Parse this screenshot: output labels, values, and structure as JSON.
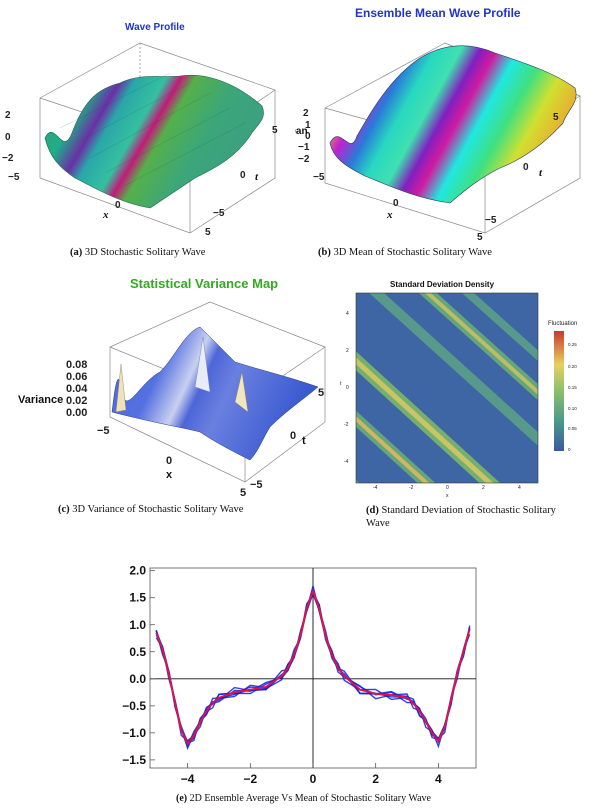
{
  "panels": {
    "a": {
      "title": "Wave Profile",
      "title_color": "#2233cc",
      "z_ticks": [
        "2",
        "0",
        "−2"
      ],
      "x_label": "x",
      "x_ticks": [
        "−5",
        "0",
        "5"
      ],
      "t_label": "t",
      "t_ticks": [
        "5",
        "0",
        "−5"
      ],
      "caption_label": "(a)",
      "caption_text": " 3D Stochastic Solitary Wave"
    },
    "b": {
      "title": "Ensemble Mean Wave Profile",
      "title_color": "#2233cc",
      "z_label": "Mean",
      "z_ticks": [
        "2",
        "1",
        "0",
        "−1",
        "−2"
      ],
      "x_label": "x",
      "x_ticks": [
        "−5",
        "0",
        "5"
      ],
      "t_label": "t",
      "t_ticks": [
        "5",
        "0",
        "−5"
      ],
      "caption_label": "(b)",
      "caption_text": " 3D Mean of Stochastic Solitary Wave"
    },
    "c": {
      "title": "Statistical Variance Map",
      "title_color": "#33aa22",
      "z_label": "Variance",
      "z_ticks": [
        "0.08",
        "0.06",
        "0.04",
        "0.02",
        "0.00"
      ],
      "x_label": "x",
      "x_ticks": [
        "−5",
        "0",
        "5"
      ],
      "t_label": "t",
      "t_ticks": [
        "5",
        "0",
        "−5"
      ],
      "caption_label": "(c)",
      "caption_text": " 3D Variance of Stochastic Solitary Wave"
    },
    "d": {
      "title": "Standard Deviation Density",
      "legend_title": "Fluctuation",
      "legend_ticks": [
        "0.25",
        "0.20",
        "0.15",
        "0.10",
        "0.05",
        "0"
      ],
      "x_label": "x",
      "y_label": "t",
      "x_ticks": [
        "-4",
        "-2",
        "0",
        "2",
        "4"
      ],
      "y_ticks": [
        "4",
        "2",
        "0",
        "-2",
        "-4"
      ],
      "caption_label": "(d)",
      "caption_text": " Standard Deviation of Stochastic Solitary Wave"
    },
    "e": {
      "caption_label": "(e)",
      "caption_text": " 2D Ensemble Average Vs Mean of Stochastic Solitary Wave"
    }
  },
  "chart_data": {
    "type": "line",
    "x_ticks": [
      "−4",
      "−2",
      "0",
      "2",
      "4"
    ],
    "y_ticks": [
      "2.0",
      "1.5",
      "1.0",
      "0.5",
      "0.0",
      "−0.5",
      "−1.0",
      "−1.5"
    ],
    "xlim": [
      -5.2,
      5.2
    ],
    "ylim": [
      -1.65,
      2.05
    ],
    "series": [
      {
        "color": "#1020e0",
        "role": "ensemble realizations",
        "x": [
          -5,
          -4.8,
          -4.6,
          -4.4,
          -4.2,
          -4.0,
          -3.8,
          -3.6,
          -3.4,
          -3.2,
          -3.0,
          -2.5,
          -2.0,
          -1.5,
          -1.0,
          -0.8,
          -0.6,
          -0.4,
          -0.2,
          0.0,
          0.2,
          0.4,
          0.6,
          0.8,
          1.0,
          1.5,
          2.0,
          2.5,
          3.0,
          3.2,
          3.4,
          3.6,
          3.8,
          4.0,
          4.2,
          4.4,
          4.6,
          4.8,
          5.0
        ],
        "y": [
          0.85,
          0.55,
          0.1,
          -0.45,
          -0.95,
          -1.2,
          -1.05,
          -0.8,
          -0.6,
          -0.45,
          -0.35,
          -0.25,
          -0.2,
          -0.15,
          0.05,
          0.2,
          0.45,
          0.8,
          1.3,
          1.62,
          1.3,
          0.8,
          0.45,
          0.2,
          0.05,
          -0.2,
          -0.28,
          -0.3,
          -0.35,
          -0.45,
          -0.6,
          -0.8,
          -1.0,
          -1.15,
          -0.9,
          -0.4,
          0.1,
          0.5,
          0.92
        ]
      },
      {
        "color": "#ee1133",
        "role": "ensemble mean",
        "x": [
          -5,
          -4.8,
          -4.6,
          -4.4,
          -4.2,
          -4.0,
          -3.8,
          -3.6,
          -3.4,
          -3.2,
          -3.0,
          -2.5,
          -2.0,
          -1.5,
          -1.0,
          -0.8,
          -0.6,
          -0.4,
          -0.2,
          0.0,
          0.2,
          0.4,
          0.6,
          0.8,
          1.0,
          1.5,
          2.0,
          2.5,
          3.0,
          3.2,
          3.4,
          3.6,
          3.8,
          4.0,
          4.2,
          4.4,
          4.6,
          4.8,
          5.0
        ],
        "y": [
          0.85,
          0.55,
          0.1,
          -0.45,
          -0.95,
          -1.2,
          -1.05,
          -0.8,
          -0.6,
          -0.45,
          -0.35,
          -0.25,
          -0.2,
          -0.15,
          0.05,
          0.2,
          0.45,
          0.8,
          1.3,
          1.62,
          1.3,
          0.8,
          0.45,
          0.2,
          0.05,
          -0.2,
          -0.28,
          -0.3,
          -0.35,
          -0.45,
          -0.6,
          -0.8,
          -1.0,
          -1.15,
          -0.9,
          -0.4,
          0.1,
          0.5,
          0.92
        ]
      }
    ]
  }
}
